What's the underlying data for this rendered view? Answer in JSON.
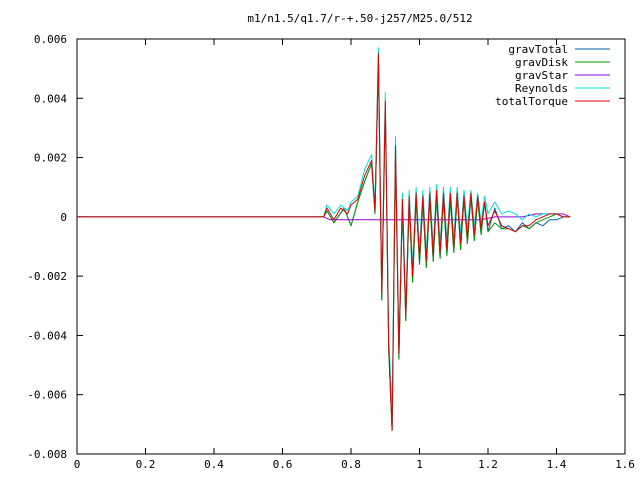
{
  "chart_data": {
    "type": "line",
    "title": "m1/n1.5/q1.7/r-+.50-j257/M25.0/512",
    "xlabel": "",
    "ylabel": "",
    "xlim": [
      0,
      1.6
    ],
    "ylim": [
      -0.008,
      0.006
    ],
    "grid": false,
    "legend_position": "top-right",
    "x_ticks": [
      {
        "value": 0,
        "label": "0"
      },
      {
        "value": 0.2,
        "label": "0.2"
      },
      {
        "value": 0.4,
        "label": "0.4"
      },
      {
        "value": 0.6,
        "label": "0.6"
      },
      {
        "value": 0.8,
        "label": "0.8"
      },
      {
        "value": 1.0,
        "label": "1"
      },
      {
        "value": 1.2,
        "label": "1.2"
      },
      {
        "value": 1.4,
        "label": "1.4"
      },
      {
        "value": 1.6,
        "label": "1.6"
      }
    ],
    "y_ticks": [
      {
        "value": 0.006,
        "label": "0.006"
      },
      {
        "value": 0.004,
        "label": "0.004"
      },
      {
        "value": 0.002,
        "label": "0.002"
      },
      {
        "value": 0,
        "label": "0"
      },
      {
        "value": -0.002,
        "label": "-0.002"
      },
      {
        "value": -0.004,
        "label": "-0.004"
      },
      {
        "value": -0.006,
        "label": "-0.006"
      },
      {
        "value": -0.008,
        "label": "-0.008"
      }
    ],
    "series": [
      {
        "name": "gravTotal",
        "color": "#0060ad",
        "points": [
          [
            0,
            0
          ],
          [
            0.72,
            0
          ],
          [
            0.73,
            0.0002
          ],
          [
            0.75,
            -0.0002
          ],
          [
            0.78,
            0.0003
          ],
          [
            0.8,
            -0.0003
          ],
          [
            0.82,
            0.0005
          ],
          [
            0.84,
            0.0012
          ],
          [
            0.86,
            0.0018
          ],
          [
            0.87,
            0.0001
          ],
          [
            0.88,
            0.0052
          ],
          [
            0.89,
            -0.0028
          ],
          [
            0.9,
            0.0037
          ],
          [
            0.91,
            -0.0045
          ],
          [
            0.92,
            -0.0072
          ],
          [
            0.93,
            0.0022
          ],
          [
            0.94,
            -0.0048
          ],
          [
            0.95,
            0.0004
          ],
          [
            0.96,
            -0.0035
          ],
          [
            0.97,
            0.0005
          ],
          [
            0.98,
            -0.0022
          ],
          [
            0.99,
            0.0006
          ],
          [
            1.0,
            -0.0016
          ],
          [
            1.01,
            0.0005
          ],
          [
            1.02,
            -0.0017
          ],
          [
            1.03,
            0.0006
          ],
          [
            1.04,
            -0.0015
          ],
          [
            1.05,
            0.0007
          ],
          [
            1.06,
            -0.0014
          ],
          [
            1.07,
            0.0006
          ],
          [
            1.08,
            -0.0013
          ],
          [
            1.09,
            0.0006
          ],
          [
            1.1,
            -0.0012
          ],
          [
            1.11,
            0.0007
          ],
          [
            1.12,
            -0.0011
          ],
          [
            1.13,
            0.0006
          ],
          [
            1.14,
            -0.0009
          ],
          [
            1.15,
            0.0007
          ],
          [
            1.16,
            -0.0008
          ],
          [
            1.17,
            0.0006
          ],
          [
            1.18,
            -0.0006
          ],
          [
            1.19,
            0.0005
          ],
          [
            1.2,
            -0.0005
          ],
          [
            1.22,
            0.0003
          ],
          [
            1.24,
            -0.0004
          ],
          [
            1.26,
            -0.0003
          ],
          [
            1.28,
            -0.0005
          ],
          [
            1.3,
            -0.0002
          ],
          [
            1.32,
            -0.0004
          ],
          [
            1.34,
            -0.0002
          ],
          [
            1.36,
            -0.0003
          ],
          [
            1.38,
            -0.0001
          ],
          [
            1.4,
            -0.0001
          ],
          [
            1.42,
            0.0
          ],
          [
            1.44,
            0.0
          ]
        ]
      },
      {
        "name": "gravDisk",
        "color": "#009e00",
        "points": [
          [
            0,
            0
          ],
          [
            0.72,
            0
          ],
          [
            0.73,
            0.0002
          ],
          [
            0.75,
            -0.0002
          ],
          [
            0.78,
            0.0003
          ],
          [
            0.8,
            -0.0003
          ],
          [
            0.82,
            0.0005
          ],
          [
            0.84,
            0.0012
          ],
          [
            0.86,
            0.0018
          ],
          [
            0.87,
            0.0001
          ],
          [
            0.88,
            0.0052
          ],
          [
            0.89,
            -0.0028
          ],
          [
            0.9,
            0.0037
          ],
          [
            0.91,
            -0.0045
          ],
          [
            0.92,
            -0.0072
          ],
          [
            0.93,
            0.0022
          ],
          [
            0.94,
            -0.0048
          ],
          [
            0.95,
            0.0004
          ],
          [
            0.96,
            -0.0035
          ],
          [
            0.97,
            0.0005
          ],
          [
            0.98,
            -0.0022
          ],
          [
            0.99,
            0.0006
          ],
          [
            1.0,
            -0.0016
          ],
          [
            1.01,
            0.0005
          ],
          [
            1.02,
            -0.0017
          ],
          [
            1.03,
            0.0006
          ],
          [
            1.04,
            -0.0015
          ],
          [
            1.05,
            0.0007
          ],
          [
            1.06,
            -0.0014
          ],
          [
            1.07,
            0.0006
          ],
          [
            1.08,
            -0.0013
          ],
          [
            1.09,
            0.0006
          ],
          [
            1.1,
            -0.0012
          ],
          [
            1.11,
            0.0007
          ],
          [
            1.12,
            -0.0011
          ],
          [
            1.13,
            0.0006
          ],
          [
            1.14,
            -0.0009
          ],
          [
            1.15,
            0.0007
          ],
          [
            1.16,
            -0.0008
          ],
          [
            1.17,
            0.0006
          ],
          [
            1.18,
            -0.0006
          ],
          [
            1.19,
            0.0005
          ],
          [
            1.2,
            -0.0005
          ],
          [
            1.22,
            -0.0002
          ],
          [
            1.24,
            -0.0004
          ],
          [
            1.26,
            -0.0004
          ],
          [
            1.28,
            -0.0005
          ],
          [
            1.3,
            -0.0003
          ],
          [
            1.32,
            -0.0004
          ],
          [
            1.34,
            -0.0002
          ],
          [
            1.36,
            -0.0001
          ],
          [
            1.38,
            0.0
          ],
          [
            1.4,
            0.0001
          ],
          [
            1.42,
            0.0
          ],
          [
            1.44,
            0.0
          ]
        ]
      },
      {
        "name": "gravStar",
        "color": "#9400d3",
        "points": [
          [
            0,
            0
          ],
          [
            0.72,
            0
          ],
          [
            0.74,
            -0.0001
          ],
          [
            0.78,
            -0.0001
          ],
          [
            0.82,
            -0.0001
          ],
          [
            0.86,
            -0.0001
          ],
          [
            0.9,
            -0.0001
          ],
          [
            0.94,
            -0.0001
          ],
          [
            0.98,
            -0.0001
          ],
          [
            1.02,
            -0.0001
          ],
          [
            1.06,
            -0.0001
          ],
          [
            1.1,
            -0.0001
          ],
          [
            1.14,
            -0.0001
          ],
          [
            1.18,
            -0.0001
          ],
          [
            1.22,
            0.0
          ],
          [
            1.26,
            0.0
          ],
          [
            1.3,
            0.0
          ],
          [
            1.34,
            0.0001
          ],
          [
            1.38,
            0.0001
          ],
          [
            1.42,
            0.0001
          ],
          [
            1.44,
            0.0
          ]
        ]
      },
      {
        "name": "Reynolds",
        "color": "#00e0e0",
        "points": [
          [
            0,
            0
          ],
          [
            0.72,
            0
          ],
          [
            0.73,
            0.0004
          ],
          [
            0.75,
            0.0001
          ],
          [
            0.77,
            0.0004
          ],
          [
            0.79,
            0.0002
          ],
          [
            0.8,
            0.0005
          ],
          [
            0.82,
            0.0007
          ],
          [
            0.84,
            0.0016
          ],
          [
            0.86,
            0.0021
          ],
          [
            0.87,
            0.0004
          ],
          [
            0.88,
            0.0057
          ],
          [
            0.89,
            -0.0023
          ],
          [
            0.9,
            0.0042
          ],
          [
            0.91,
            -0.004
          ],
          [
            0.92,
            -0.0066
          ],
          [
            0.93,
            0.0027
          ],
          [
            0.94,
            -0.0043
          ],
          [
            0.95,
            0.0008
          ],
          [
            0.96,
            -0.003
          ],
          [
            0.97,
            0.0009
          ],
          [
            0.98,
            -0.0017
          ],
          [
            0.99,
            0.001
          ],
          [
            1.0,
            -0.0011
          ],
          [
            1.01,
            0.0009
          ],
          [
            1.02,
            -0.0012
          ],
          [
            1.03,
            0.001
          ],
          [
            1.04,
            -0.001
          ],
          [
            1.05,
            0.0011
          ],
          [
            1.06,
            -0.0009
          ],
          [
            1.07,
            0.001
          ],
          [
            1.08,
            -0.0008
          ],
          [
            1.09,
            0.001
          ],
          [
            1.1,
            -0.0007
          ],
          [
            1.11,
            0.001
          ],
          [
            1.12,
            -0.0006
          ],
          [
            1.13,
            0.0009
          ],
          [
            1.14,
            -0.0004
          ],
          [
            1.15,
            0.0009
          ],
          [
            1.16,
            -0.0003
          ],
          [
            1.17,
            0.0008
          ],
          [
            1.18,
            -0.0002
          ],
          [
            1.19,
            0.0007
          ],
          [
            1.2,
            0.0001
          ],
          [
            1.22,
            0.0005
          ],
          [
            1.24,
            0.0001
          ],
          [
            1.26,
            0.0002
          ],
          [
            1.28,
            0.0001
          ],
          [
            1.3,
            -0.0001
          ],
          [
            1.32,
            0.0001
          ],
          [
            1.34,
            0.0
          ],
          [
            1.36,
            0.0001
          ],
          [
            1.38,
            0.0001
          ],
          [
            1.4,
            0.0001
          ],
          [
            1.42,
            0.0
          ],
          [
            1.44,
            0.0
          ]
        ]
      },
      {
        "name": "totalTorque",
        "color": "#e00000",
        "points": [
          [
            0,
            0
          ],
          [
            0.72,
            0
          ],
          [
            0.73,
            0.0003
          ],
          [
            0.75,
            -0.0001
          ],
          [
            0.77,
            0.0003
          ],
          [
            0.79,
            0.0001
          ],
          [
            0.8,
            0.0004
          ],
          [
            0.82,
            0.0006
          ],
          [
            0.84,
            0.0014
          ],
          [
            0.86,
            0.0019
          ],
          [
            0.87,
            0.0002
          ],
          [
            0.88,
            0.0055
          ],
          [
            0.89,
            -0.0026
          ],
          [
            0.9,
            0.0039
          ],
          [
            0.91,
            -0.0043
          ],
          [
            0.92,
            -0.0072
          ],
          [
            0.93,
            0.0024
          ],
          [
            0.94,
            -0.0046
          ],
          [
            0.95,
            0.0006
          ],
          [
            0.96,
            -0.0033
          ],
          [
            0.97,
            0.0007
          ],
          [
            0.98,
            -0.002
          ],
          [
            0.99,
            0.0008
          ],
          [
            1.0,
            -0.0014
          ],
          [
            1.01,
            0.0007
          ],
          [
            1.02,
            -0.0015
          ],
          [
            1.03,
            0.0008
          ],
          [
            1.04,
            -0.0013
          ],
          [
            1.05,
            0.0009
          ],
          [
            1.06,
            -0.0012
          ],
          [
            1.07,
            0.0008
          ],
          [
            1.08,
            -0.0011
          ],
          [
            1.09,
            0.0008
          ],
          [
            1.1,
            -0.001
          ],
          [
            1.11,
            0.0008
          ],
          [
            1.12,
            -0.0009
          ],
          [
            1.13,
            0.0007
          ],
          [
            1.14,
            -0.0007
          ],
          [
            1.15,
            0.0008
          ],
          [
            1.16,
            -0.0006
          ],
          [
            1.17,
            0.0007
          ],
          [
            1.18,
            -0.0004
          ],
          [
            1.19,
            0.0005
          ],
          [
            1.2,
            -0.0003
          ],
          [
            1.22,
            0.0002
          ],
          [
            1.24,
            -0.0003
          ],
          [
            1.26,
            -0.0004
          ],
          [
            1.28,
            -0.0005
          ],
          [
            1.3,
            -0.0003
          ],
          [
            1.32,
            -0.0003
          ],
          [
            1.34,
            -0.0001
          ],
          [
            1.36,
            0.0
          ],
          [
            1.38,
            0.0001
          ],
          [
            1.4,
            0.0001
          ],
          [
            1.42,
            0.0
          ],
          [
            1.44,
            0.0
          ]
        ]
      }
    ]
  }
}
